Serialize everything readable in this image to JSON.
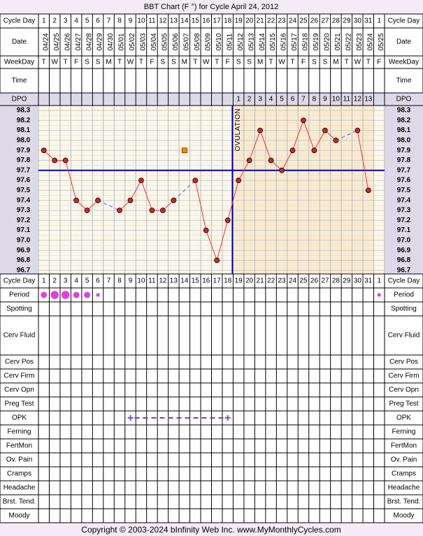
{
  "title": "BBT Chart (F °) for Cycle April 24, 2012",
  "footer": "Copyright © 2003-2024 bInfinity Web Inc.     www.MyMonthlyCycles.com",
  "row_labels": {
    "cycle_day": "Cycle Day",
    "date": "Date",
    "weekday": "WeekDay",
    "time": "Time",
    "dpo": "DPO",
    "period": "Period",
    "spotting": "Spotting",
    "cerv_fluid": "Cerv Fluid",
    "cerv_pos": "Cerv Pos",
    "cerv_firm": "Cerv Firm",
    "cerv_opn": "Cerv Opn",
    "preg_test": "Preg Test",
    "opk": "OPK",
    "ferning": "Ferning",
    "fertmon": "FertMon",
    "ov_pain": "Ov. Pain",
    "cramps": "Cramps",
    "headache": "Headache",
    "brst_tend": "Brst. Tend.",
    "moody": "Moody"
  },
  "ovulation_label": "OVULATION",
  "chart_data": {
    "type": "line",
    "title": "BBT Chart (F °) for Cycle April 24, 2012",
    "cycle_days": [
      "1",
      "2",
      "3",
      "4",
      "5",
      "6",
      "7",
      "8",
      "9",
      "10",
      "11",
      "12",
      "13",
      "14",
      "15",
      "16",
      "17",
      "18",
      "19",
      "20",
      "21",
      "22",
      "23",
      "24",
      "25",
      "26",
      "27",
      "28",
      "29",
      "30",
      "31",
      "1"
    ],
    "dates": [
      "04/24",
      "04/25",
      "04/26",
      "04/27",
      "04/28",
      "04/29",
      "04/30",
      "05/01",
      "05/02",
      "05/03",
      "05/04",
      "05/05",
      "05/06",
      "05/07",
      "05/08",
      "05/09",
      "05/10",
      "05/11",
      "05/12",
      "05/13",
      "05/14",
      "05/15",
      "05/16",
      "05/17",
      "05/18",
      "05/19",
      "05/20",
      "05/21",
      "05/22",
      "05/23",
      "05/24",
      "05/25"
    ],
    "weekdays": [
      "T",
      "W",
      "T",
      "F",
      "S",
      "S",
      "M",
      "T",
      "W",
      "T",
      "F",
      "S",
      "S",
      "M",
      "T",
      "W",
      "T",
      "F",
      "S",
      "S",
      "M",
      "T",
      "W",
      "T",
      "F",
      "S",
      "S",
      "M",
      "T",
      "W",
      "T",
      "F"
    ],
    "dpo": [
      "",
      "",
      "",
      "",
      "",
      "",
      "",
      "",
      "",
      "",
      "",
      "",
      "",
      "",
      "",
      "",
      "",
      "",
      "1",
      "2",
      "3",
      "4",
      "5",
      "6",
      "7",
      "8",
      "9",
      "10",
      "11",
      "12",
      "13",
      ""
    ],
    "y_ticks": [
      "98.3",
      "98.2",
      "98.1",
      "98.0",
      "97.9",
      "97.8",
      "97.7",
      "97.6",
      "97.5",
      "97.4",
      "97.3",
      "97.2",
      "97.1",
      "97.0",
      "96.9",
      "96.8",
      "96.7"
    ],
    "ylim": [
      96.7,
      98.3
    ],
    "temperatures": [
      97.9,
      97.8,
      97.8,
      97.4,
      97.3,
      97.4,
      null,
      97.3,
      97.4,
      97.6,
      97.3,
      97.3,
      97.4,
      null,
      97.6,
      97.1,
      96.8,
      97.2,
      97.6,
      97.8,
      98.1,
      97.8,
      97.7,
      97.9,
      98.2,
      97.9,
      98.1,
      98.0,
      null,
      98.1,
      97.5,
      null
    ],
    "discarded_points": [
      {
        "day_index": 13,
        "temp": 97.9
      }
    ],
    "coverline": 97.7,
    "ovulation_day_index": 17,
    "period": [
      2,
      3,
      3,
      2,
      2,
      1,
      0,
      0,
      0,
      0,
      0,
      0,
      0,
      0,
      0,
      0,
      0,
      0,
      0,
      0,
      0,
      0,
      0,
      0,
      0,
      0,
      0,
      0,
      0,
      0,
      0,
      1
    ],
    "opk": {
      "positive_days": [
        8,
        17
      ],
      "dashed_span": [
        8,
        17
      ],
      "symbol": "+"
    }
  },
  "colors": {
    "pre_bg": "#fbf8ea",
    "post_bg": "#faebcf",
    "line": "#ee3333",
    "dot": "#dd2222",
    "coverline": "#0000cc",
    "ovulation": "#000099",
    "period": "#e040e0",
    "opk": "#8833cc",
    "discard": "#ff8800",
    "header_bg": "#ddd9e8"
  }
}
